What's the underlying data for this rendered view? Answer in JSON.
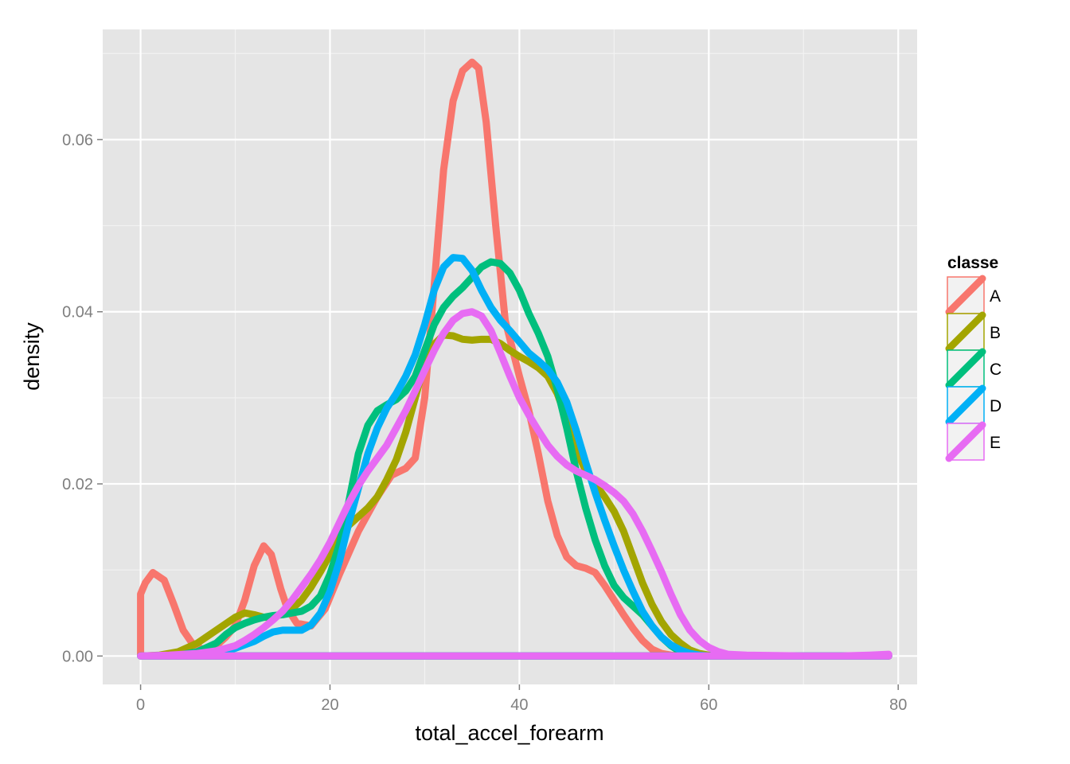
{
  "chart_data": {
    "type": "line",
    "xlabel": "total_accel_forearm",
    "ylabel": "density",
    "xlim": [
      -4,
      82
    ],
    "ylim": [
      -0.0033,
      0.0728
    ],
    "x_ticks": [
      0,
      20,
      40,
      60,
      80
    ],
    "y_ticks": [
      0.0,
      0.02,
      0.04,
      0.06
    ],
    "x_tick_labels": [
      "0",
      "20",
      "40",
      "60",
      "80"
    ],
    "y_tick_labels": [
      "0.00",
      "0.02",
      "0.04",
      "0.06"
    ],
    "grid": true,
    "legend": {
      "title": "classe",
      "position": "right"
    },
    "series": [
      {
        "name": "A",
        "color": "#F8766D",
        "points": [
          [
            0,
            0
          ],
          [
            0,
            0.0072
          ],
          [
            0.5,
            0.0085
          ],
          [
            1.3,
            0.0097
          ],
          [
            2.5,
            0.0088
          ],
          [
            3.5,
            0.006
          ],
          [
            4.5,
            0.003
          ],
          [
            5.5,
            0.0014
          ],
          [
            6.5,
            0.0008
          ],
          [
            8,
            0.0012
          ],
          [
            9,
            0.0022
          ],
          [
            10,
            0.0035
          ],
          [
            11,
            0.0065
          ],
          [
            12,
            0.0105
          ],
          [
            13,
            0.0128
          ],
          [
            13.8,
            0.0118
          ],
          [
            14.8,
            0.0078
          ],
          [
            15.5,
            0.0055
          ],
          [
            16.5,
            0.0038
          ],
          [
            18,
            0.0035
          ],
          [
            19.5,
            0.0055
          ],
          [
            21,
            0.0095
          ],
          [
            23,
            0.0145
          ],
          [
            25,
            0.0185
          ],
          [
            26.5,
            0.021
          ],
          [
            28,
            0.0218
          ],
          [
            29,
            0.023
          ],
          [
            30,
            0.03
          ],
          [
            31,
            0.043
          ],
          [
            32,
            0.0565
          ],
          [
            33,
            0.0645
          ],
          [
            34,
            0.068
          ],
          [
            35,
            0.069
          ],
          [
            35.7,
            0.0683
          ],
          [
            36.5,
            0.062
          ],
          [
            37.5,
            0.05
          ],
          [
            38.5,
            0.039
          ],
          [
            40,
            0.0325
          ],
          [
            41,
            0.0285
          ],
          [
            42,
            0.0235
          ],
          [
            43,
            0.018
          ],
          [
            44,
            0.014
          ],
          [
            45,
            0.0115
          ],
          [
            46,
            0.0105
          ],
          [
            47,
            0.0102
          ],
          [
            48,
            0.0097
          ],
          [
            49,
            0.0082
          ],
          [
            50,
            0.0065
          ],
          [
            51,
            0.0048
          ],
          [
            52,
            0.0032
          ],
          [
            53,
            0.0018
          ],
          [
            54,
            0.0008
          ],
          [
            55,
            0.0003
          ],
          [
            56,
            0.0001
          ],
          [
            57,
            0
          ]
        ]
      },
      {
        "name": "B",
        "color": "#A3A500",
        "points": [
          [
            0,
            0
          ],
          [
            2,
            0.0001
          ],
          [
            4,
            0.0005
          ],
          [
            6,
            0.0015
          ],
          [
            8,
            0.003
          ],
          [
            10,
            0.0045
          ],
          [
            11,
            0.005
          ],
          [
            12,
            0.0048
          ],
          [
            13,
            0.0045
          ],
          [
            14,
            0.0045
          ],
          [
            15,
            0.005
          ],
          [
            16,
            0.0055
          ],
          [
            17,
            0.0065
          ],
          [
            18,
            0.008
          ],
          [
            19,
            0.0098
          ],
          [
            20,
            0.0118
          ],
          [
            21,
            0.0138
          ],
          [
            22,
            0.0152
          ],
          [
            23,
            0.0162
          ],
          [
            24,
            0.0172
          ],
          [
            25,
            0.0185
          ],
          [
            26,
            0.0205
          ],
          [
            27,
            0.0228
          ],
          [
            28,
            0.026
          ],
          [
            29,
            0.03
          ],
          [
            30,
            0.034
          ],
          [
            31,
            0.0362
          ],
          [
            32,
            0.0373
          ],
          [
            33,
            0.0372
          ],
          [
            34,
            0.0368
          ],
          [
            35,
            0.0367
          ],
          [
            36,
            0.0368
          ],
          [
            37,
            0.0368
          ],
          [
            38,
            0.0363
          ],
          [
            39,
            0.0355
          ],
          [
            40,
            0.0348
          ],
          [
            41,
            0.0342
          ],
          [
            42,
            0.0335
          ],
          [
            43,
            0.0325
          ],
          [
            44,
            0.0305
          ],
          [
            45,
            0.0275
          ],
          [
            46,
            0.024
          ],
          [
            47,
            0.0215
          ],
          [
            48,
            0.02
          ],
          [
            49,
            0.0185
          ],
          [
            50,
            0.0168
          ],
          [
            51,
            0.0145
          ],
          [
            52,
            0.0115
          ],
          [
            53,
            0.0085
          ],
          [
            54,
            0.006
          ],
          [
            55,
            0.004
          ],
          [
            56,
            0.0025
          ],
          [
            57,
            0.0015
          ],
          [
            58,
            0.0007
          ],
          [
            59,
            0.0003
          ],
          [
            60,
            0.0001
          ],
          [
            61,
            0
          ]
        ]
      },
      {
        "name": "C",
        "color": "#00BF7D",
        "points": [
          [
            0,
            0
          ],
          [
            4,
            0.0001
          ],
          [
            6,
            0.0005
          ],
          [
            8,
            0.0015
          ],
          [
            9,
            0.0025
          ],
          [
            10,
            0.0033
          ],
          [
            11,
            0.0038
          ],
          [
            12,
            0.0042
          ],
          [
            13,
            0.0045
          ],
          [
            14,
            0.0047
          ],
          [
            15,
            0.0048
          ],
          [
            16,
            0.005
          ],
          [
            17,
            0.0052
          ],
          [
            18,
            0.0058
          ],
          [
            19,
            0.007
          ],
          [
            20,
            0.0095
          ],
          [
            21,
            0.013
          ],
          [
            22,
            0.018
          ],
          [
            23,
            0.0235
          ],
          [
            24,
            0.0268
          ],
          [
            25,
            0.0285
          ],
          [
            26,
            0.0292
          ],
          [
            27,
            0.0298
          ],
          [
            28,
            0.0308
          ],
          [
            29,
            0.0325
          ],
          [
            30,
            0.0355
          ],
          [
            31,
            0.0385
          ],
          [
            32,
            0.0405
          ],
          [
            33,
            0.0418
          ],
          [
            34,
            0.0428
          ],
          [
            35,
            0.044
          ],
          [
            36,
            0.0452
          ],
          [
            37,
            0.0458
          ],
          [
            38,
            0.0456
          ],
          [
            39,
            0.0445
          ],
          [
            40,
            0.0425
          ],
          [
            41,
            0.0398
          ],
          [
            42,
            0.0375
          ],
          [
            43,
            0.0348
          ],
          [
            44,
            0.031
          ],
          [
            45,
            0.0265
          ],
          [
            46,
            0.0215
          ],
          [
            47,
            0.0172
          ],
          [
            48,
            0.0135
          ],
          [
            49,
            0.0105
          ],
          [
            50,
            0.0082
          ],
          [
            51,
            0.0068
          ],
          [
            52,
            0.0058
          ],
          [
            53,
            0.0048
          ],
          [
            54,
            0.0035
          ],
          [
            55,
            0.0022
          ],
          [
            56,
            0.0012
          ],
          [
            57,
            0.0005
          ],
          [
            58,
            0.0002
          ],
          [
            59,
            0
          ]
        ]
      },
      {
        "name": "D",
        "color": "#00B0F6",
        "points": [
          [
            0,
            0
          ],
          [
            5,
            0.0001
          ],
          [
            8,
            0.0004
          ],
          [
            10,
            0.0009
          ],
          [
            12,
            0.0017
          ],
          [
            13,
            0.0023
          ],
          [
            14,
            0.0028
          ],
          [
            15,
            0.003
          ],
          [
            16,
            0.003
          ],
          [
            17,
            0.003
          ],
          [
            18,
            0.0036
          ],
          [
            19,
            0.005
          ],
          [
            20,
            0.0075
          ],
          [
            21,
            0.011
          ],
          [
            22,
            0.0155
          ],
          [
            23,
            0.0195
          ],
          [
            24,
            0.0235
          ],
          [
            25,
            0.0265
          ],
          [
            26,
            0.0288
          ],
          [
            27,
            0.0305
          ],
          [
            28,
            0.0325
          ],
          [
            29,
            0.035
          ],
          [
            30,
            0.0385
          ],
          [
            31,
            0.0425
          ],
          [
            32,
            0.0452
          ],
          [
            33,
            0.0463
          ],
          [
            34,
            0.0462
          ],
          [
            35,
            0.0448
          ],
          [
            36,
            0.0425
          ],
          [
            37,
            0.0405
          ],
          [
            38,
            0.039
          ],
          [
            39,
            0.0378
          ],
          [
            40,
            0.0365
          ],
          [
            41,
            0.0352
          ],
          [
            42,
            0.0343
          ],
          [
            43,
            0.0333
          ],
          [
            44,
            0.0318
          ],
          [
            45,
            0.0295
          ],
          [
            46,
            0.0262
          ],
          [
            47,
            0.0225
          ],
          [
            48,
            0.019
          ],
          [
            49,
            0.0158
          ],
          [
            50,
            0.0128
          ],
          [
            51,
            0.01
          ],
          [
            52,
            0.0075
          ],
          [
            53,
            0.0052
          ],
          [
            54,
            0.0035
          ],
          [
            55,
            0.0022
          ],
          [
            56,
            0.0013
          ],
          [
            57,
            0.0007
          ],
          [
            58,
            0.0003
          ],
          [
            59,
            0.0001
          ],
          [
            60,
            0
          ]
        ]
      },
      {
        "name": "E",
        "color": "#E76BF3",
        "points": [
          [
            0,
            0
          ],
          [
            3,
            0.0001
          ],
          [
            6,
            0.0003
          ],
          [
            8,
            0.0006
          ],
          [
            10,
            0.0012
          ],
          [
            11,
            0.0018
          ],
          [
            12,
            0.0025
          ],
          [
            13,
            0.0033
          ],
          [
            14,
            0.0042
          ],
          [
            15,
            0.0052
          ],
          [
            16,
            0.0065
          ],
          [
            17,
            0.008
          ],
          [
            18,
            0.0095
          ],
          [
            19,
            0.0112
          ],
          [
            20,
            0.0132
          ],
          [
            21,
            0.0155
          ],
          [
            22,
            0.0178
          ],
          [
            23,
            0.0198
          ],
          [
            24,
            0.0215
          ],
          [
            25,
            0.023
          ],
          [
            26,
            0.0245
          ],
          [
            27,
            0.0265
          ],
          [
            28,
            0.0285
          ],
          [
            29,
            0.0308
          ],
          [
            30,
            0.0332
          ],
          [
            31,
            0.0355
          ],
          [
            32,
            0.0375
          ],
          [
            33,
            0.039
          ],
          [
            34,
            0.0398
          ],
          [
            35,
            0.04
          ],
          [
            36,
            0.0395
          ],
          [
            37,
            0.0378
          ],
          [
            38,
            0.0352
          ],
          [
            39,
            0.0325
          ],
          [
            40,
            0.03
          ],
          [
            41,
            0.028
          ],
          [
            42,
            0.0262
          ],
          [
            43,
            0.0245
          ],
          [
            44,
            0.0232
          ],
          [
            45,
            0.0222
          ],
          [
            46,
            0.0215
          ],
          [
            47,
            0.021
          ],
          [
            48,
            0.0205
          ],
          [
            49,
            0.0198
          ],
          [
            50,
            0.019
          ],
          [
            51,
            0.018
          ],
          [
            52,
            0.0165
          ],
          [
            53,
            0.0145
          ],
          [
            54,
            0.0122
          ],
          [
            55,
            0.0098
          ],
          [
            56,
            0.0072
          ],
          [
            57,
            0.0048
          ],
          [
            58,
            0.003
          ],
          [
            59,
            0.0018
          ],
          [
            60,
            0.001
          ],
          [
            61,
            0.0005
          ],
          [
            62,
            0.0002
          ],
          [
            64,
            0.0001
          ],
          [
            70,
            0
          ],
          [
            74,
            0
          ],
          [
            77,
            0.0001
          ],
          [
            79,
            0.0002
          ],
          [
            79,
            0
          ]
        ]
      }
    ]
  }
}
